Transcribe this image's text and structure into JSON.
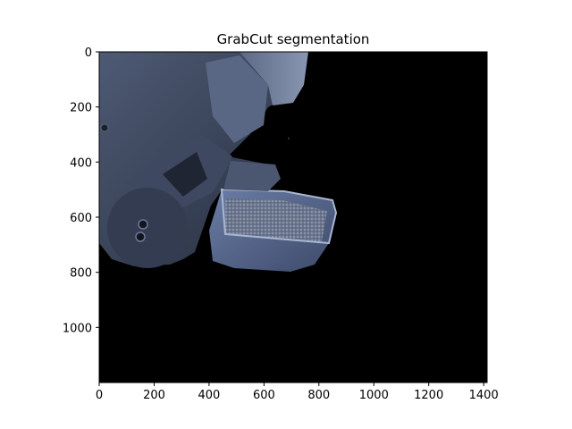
{
  "title": "GrabCut segmentation",
  "image": {
    "background_color": "#000000",
    "content": "segmented robot gripper holding a scoop/tray with granular material"
  },
  "axes": {
    "x_ticks": [
      "0",
      "200",
      "400",
      "600",
      "800",
      "1000",
      "1200",
      "1400"
    ],
    "y_ticks": [
      "0",
      "200",
      "400",
      "600",
      "800",
      "1000"
    ],
    "x_range": [
      0,
      1414
    ],
    "y_range": [
      0,
      1200
    ]
  },
  "colors": {
    "metal_dark": "#2c3546",
    "metal_mid": "#4a5670",
    "metal_light": "#7c8aa6",
    "tray_blue": "#5b6f9b"
  }
}
